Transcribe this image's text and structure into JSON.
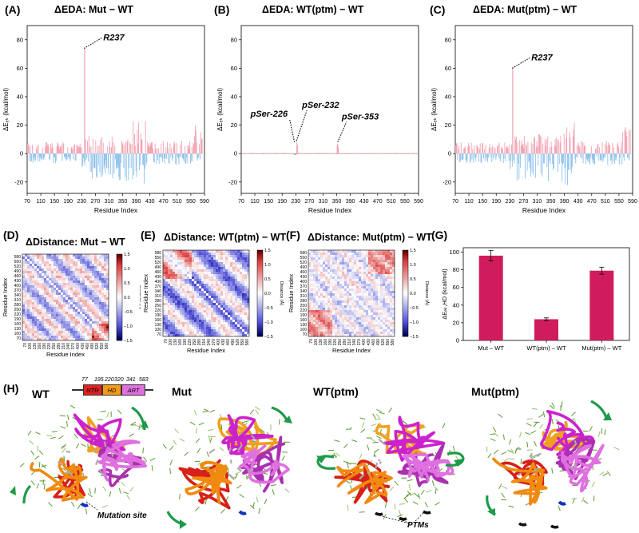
{
  "panels": {
    "A": {
      "letter": "(A)",
      "title": "ΔEDA: Mut − WT"
    },
    "B": {
      "letter": "(B)",
      "title": "ΔEDA: WT(ptm) − WT"
    },
    "C": {
      "letter": "(C)",
      "title": "ΔEDA: Mut(ptm) − WT"
    },
    "D": {
      "letter": "(D)",
      "title": "ΔDistance: Mut − WT"
    },
    "E": {
      "letter": "(E)",
      "title": "ΔDistance: WT(ptm) − WT"
    },
    "F": {
      "letter": "(F)",
      "title": "ΔDistance: Mut(ptm) − WT"
    },
    "G": {
      "letter": "(G)"
    },
    "H": {
      "letter": "(H)"
    }
  },
  "chart_data": [
    {
      "id": "A",
      "type": "bar",
      "title": "ΔEDA: Mut − WT",
      "xlabel": "Residue Index",
      "ylabel": "ΔEₑₖ (kcal/mol)",
      "ylim": [
        -28,
        90
      ],
      "xlim": [
        70,
        590
      ],
      "yticks": [
        -20,
        0,
        20,
        40,
        60,
        80
      ],
      "xticks": [
        "70",
        "110",
        "150",
        "190",
        "230",
        "270",
        "310",
        "350",
        "390",
        "430",
        "470",
        "510",
        "550",
        "590"
      ],
      "annotations": [
        {
          "label": "R237",
          "x": 237,
          "y": 74
        }
      ],
      "peak": {
        "x": 237,
        "y": 74
      }
    },
    {
      "id": "B",
      "type": "bar",
      "title": "ΔEDA: WT(ptm) − WT",
      "xlabel": "Residue Index",
      "ylabel": "ΔEₑₖ (kcal/mol)",
      "ylim": [
        -28,
        90
      ],
      "xlim": [
        70,
        590
      ],
      "yticks": [
        -20,
        0,
        20,
        40,
        60,
        80
      ],
      "xticks": [
        "70",
        "110",
        "150",
        "190",
        "230",
        "270",
        "310",
        "350",
        "390",
        "430",
        "470",
        "510",
        "550",
        "590"
      ],
      "annotations": [
        {
          "label": "pSer-226",
          "x": 226,
          "y": 8
        },
        {
          "label": "pSer-232",
          "x": 232,
          "y": 9
        },
        {
          "label": "pSer-353",
          "x": 353,
          "y": 8
        }
      ]
    },
    {
      "id": "C",
      "type": "bar",
      "title": "ΔEDA: Mut(ptm) − WT",
      "xlabel": "Residue Index",
      "ylabel": "ΔEₑₖ (kcal/mol)",
      "ylim": [
        -28,
        90
      ],
      "xlim": [
        70,
        590
      ],
      "yticks": [
        -20,
        0,
        20,
        40,
        60,
        80
      ],
      "xticks": [
        "70",
        "110",
        "150",
        "190",
        "230",
        "270",
        "310",
        "350",
        "390",
        "430",
        "470",
        "510",
        "550",
        "590"
      ],
      "annotations": [
        {
          "label": "R237",
          "x": 237,
          "y": 60
        }
      ],
      "peak": {
        "x": 237,
        "y": 60
      }
    },
    {
      "id": "D",
      "type": "heatmap",
      "title": "ΔDistance: Mut − WT",
      "xlabel": "Residue Index",
      "ylabel": "Residue Index",
      "colorbar_label": "Distance (Å)",
      "colorbar_ticks": [
        "1.5",
        "1.0",
        "0.5",
        "0.0",
        "−0.5",
        "−1.0",
        "−1.5"
      ],
      "axis_ticks": [
        "70",
        "100",
        "130",
        "160",
        "190",
        "220",
        "250",
        "280",
        "310",
        "340",
        "370",
        "400",
        "430",
        "460",
        "490",
        "520",
        "550",
        "580"
      ],
      "y_axis_ticks": [
        "580",
        "550",
        "520",
        "490",
        "460",
        "430",
        "400",
        "370",
        "340",
        "310",
        "280",
        "250",
        "220",
        "190",
        "160",
        "130",
        "100",
        "70"
      ],
      "vrange": [
        -1.5,
        1.5
      ]
    },
    {
      "id": "E",
      "type": "heatmap",
      "title": "ΔDistance: WT(ptm) − WT",
      "xlabel": "Residue Index",
      "ylabel": "Residue Index",
      "colorbar_label": "Distance (Å)",
      "colorbar_ticks": [
        "1.5",
        "1.0",
        "0.5",
        "0.0",
        "−0.5",
        "−1.0",
        "−1.5"
      ],
      "axis_ticks": [
        "70",
        "100",
        "130",
        "160",
        "190",
        "220",
        "250",
        "280",
        "310",
        "340",
        "370",
        "400",
        "430",
        "460",
        "490",
        "520",
        "550",
        "580"
      ],
      "y_axis_ticks": [
        "580",
        "550",
        "520",
        "490",
        "460",
        "430",
        "400",
        "370",
        "340",
        "310",
        "280",
        "250",
        "220",
        "190",
        "160",
        "130",
        "100",
        "70"
      ],
      "vrange": [
        -1.5,
        1.5
      ]
    },
    {
      "id": "F",
      "type": "heatmap",
      "title": "ΔDistance: Mut(ptm) − WT",
      "xlabel": "Residue Index",
      "ylabel": "Residue Index",
      "colorbar_label": "Distance (Å)",
      "colorbar_ticks": [
        "1.5",
        "1.0",
        "0.5",
        "0.0",
        "−0.5",
        "−1.0",
        "−1.5"
      ],
      "axis_ticks": [
        "70",
        "100",
        "130",
        "160",
        "190",
        "220",
        "250",
        "280",
        "310",
        "340",
        "370",
        "400",
        "430",
        "460",
        "490",
        "520",
        "550",
        "580"
      ],
      "y_axis_ticks": [
        "580",
        "550",
        "520",
        "490",
        "460",
        "430",
        "400",
        "370",
        "340",
        "310",
        "280",
        "250",
        "220",
        "190",
        "160",
        "130",
        "100",
        "70"
      ],
      "vrange": [
        -1.5,
        1.5
      ]
    },
    {
      "id": "G",
      "type": "bar",
      "categories": [
        "Mut – WT",
        "WT(ptm) – WT",
        "Mut(ptm) – WT"
      ],
      "values": [
        96,
        24,
        79
      ],
      "errors": [
        6,
        1.5,
        4
      ],
      "ylabel": "ΔEₑₖ,HD (kcal/mol)",
      "ylim": [
        0,
        105
      ],
      "yticks": [
        0,
        20,
        40,
        60,
        80,
        100
      ],
      "color": "#d01c5c"
    }
  ],
  "structures": {
    "labels": [
      "WT",
      "Mut",
      "WT(ptm)",
      "Mut(ptm)"
    ],
    "mutation_site": "Mutation site",
    "ptms": "PTMs",
    "domains": [
      {
        "name": "NTR",
        "start": "77",
        "color": "#e02020"
      },
      {
        "name": "HD",
        "start": "195",
        "color": "#f59a12"
      },
      {
        "name": "ART",
        "start": "341",
        "end": "583",
        "color": "#e070e0"
      }
    ],
    "domain_mid_ticks": [
      "220",
      "320"
    ]
  },
  "colors": {
    "positive_bar": "#f2a0b0",
    "negative_bar": "#8fc1ec",
    "bar_g": "#d01c5c",
    "arrow": "#1f9a4a"
  }
}
